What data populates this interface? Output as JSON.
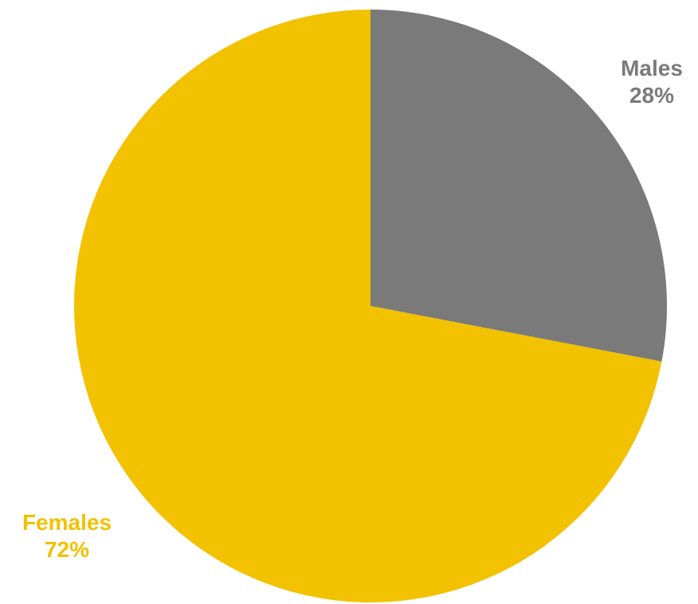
{
  "chart_data": {
    "type": "pie",
    "categories": [
      "Males",
      "Females"
    ],
    "values": [
      28,
      72
    ],
    "unit": "%",
    "start_angle_deg": 0,
    "direction": "clockwise",
    "colors": [
      "#7a7a7a",
      "#f2c100"
    ],
    "data_labels": [
      {
        "name": "Males",
        "value": "28%"
      },
      {
        "name": "Females",
        "value": "72%"
      }
    ],
    "legend": "none"
  }
}
